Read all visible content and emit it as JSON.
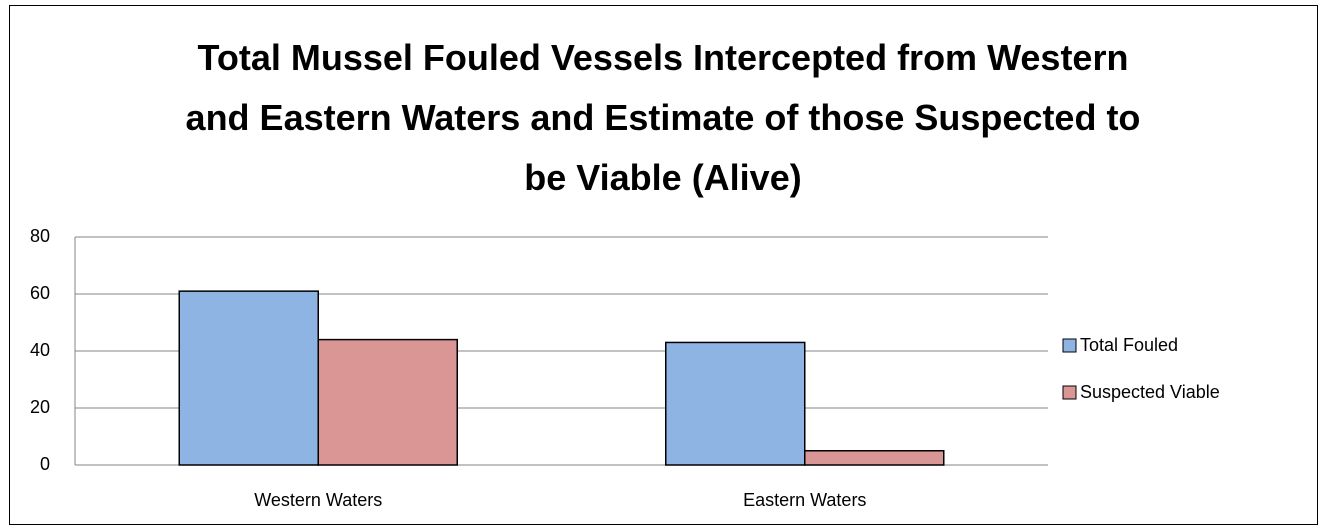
{
  "chart_data": {
    "type": "bar",
    "title": "Total Mussel Fouled Vessels Intercepted from Western and Eastern Waters and Estimate of those Suspected to be Viable (Alive)",
    "categories": [
      "Western Waters",
      "Eastern Waters"
    ],
    "series": [
      {
        "name": "Total Fouled",
        "color": "#8eb4e3",
        "values": [
          61,
          43
        ]
      },
      {
        "name": "Suspected Viable",
        "color": "#d99694",
        "values": [
          44,
          5
        ]
      }
    ],
    "ylim": [
      0,
      80
    ],
    "yticks": [
      0,
      20,
      40,
      60,
      80
    ],
    "grid": true,
    "legend": "right"
  }
}
